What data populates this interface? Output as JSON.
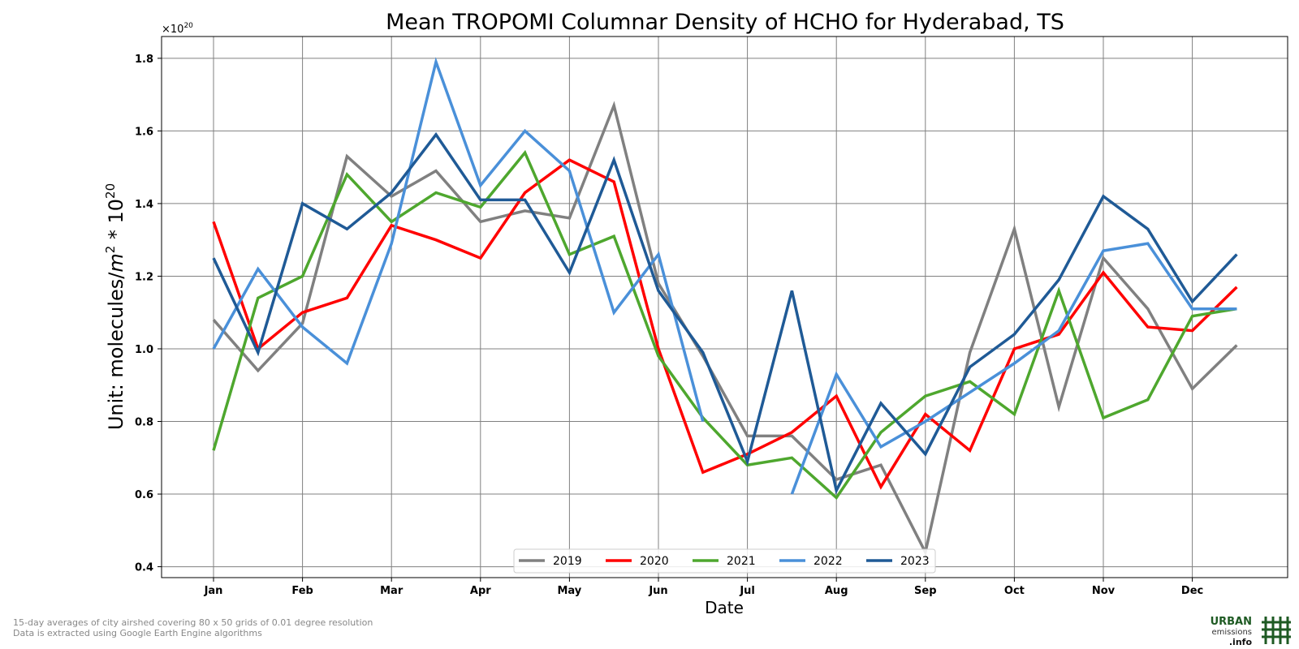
{
  "chart_data": {
    "type": "line",
    "title": "Mean TROPOMI Columnar Density of HCHO for Hyderabad, TS",
    "xlabel": "Date",
    "ylabel_text": "Unit: molecules/",
    "ylabel_unit_m": "m",
    "ylabel_unit_exp": "2",
    "ylabel_mult": " * 10",
    "ylabel_mult_exp": "20",
    "offset_base": "×10",
    "offset_exp": "20",
    "ylim": [
      0.37,
      1.86
    ],
    "yticks": [
      "0.4",
      "0.6",
      "0.8",
      "1.0",
      "1.2",
      "1.4",
      "1.6",
      "1.8"
    ],
    "xticks": [
      "Jan",
      "Feb",
      "Mar",
      "Apr",
      "May",
      "Jun",
      "Jul",
      "Aug",
      "Sep",
      "Oct",
      "Nov",
      "Dec"
    ],
    "grid": true,
    "legend_position": "bottom-center",
    "series": [
      {
        "name": "2019",
        "color": "#808080",
        "values": [
          1.08,
          0.94,
          1.07,
          1.53,
          1.42,
          1.49,
          1.35,
          1.38,
          1.36,
          1.67,
          1.18,
          0.98,
          0.76,
          0.76,
          0.64,
          0.68,
          0.44,
          0.99,
          1.33,
          0.84,
          1.25,
          1.11,
          0.89,
          1.01
        ]
      },
      {
        "name": "2020",
        "color": "#ff0000",
        "values": [
          1.35,
          1.0,
          1.1,
          1.14,
          1.34,
          1.3,
          1.25,
          1.43,
          1.52,
          1.46,
          1.0,
          0.66,
          0.71,
          0.77,
          0.87,
          0.62,
          0.82,
          0.72,
          1.0,
          1.04,
          1.21,
          1.06,
          1.05,
          1.17
        ]
      },
      {
        "name": "2021",
        "color": "#4ea72e",
        "values": [
          0.72,
          1.14,
          1.2,
          1.48,
          1.35,
          1.43,
          1.39,
          1.54,
          1.26,
          1.31,
          0.98,
          0.81,
          0.68,
          0.7,
          0.59,
          0.77,
          0.87,
          0.91,
          0.82,
          1.16,
          0.81,
          0.86,
          1.09,
          1.11
        ]
      },
      {
        "name": "2022",
        "color": "#4a90d9",
        "values": [
          1.0,
          1.22,
          1.06,
          0.96,
          1.29,
          1.79,
          1.45,
          1.6,
          1.49,
          1.1,
          1.26,
          0.8,
          null,
          0.6,
          0.93,
          0.73,
          0.8,
          0.88,
          0.96,
          1.05,
          1.27,
          1.29,
          1.11,
          1.11
        ]
      },
      {
        "name": "2023",
        "color": "#1f5a96",
        "values": [
          1.25,
          0.99,
          1.4,
          1.33,
          1.43,
          1.59,
          1.41,
          1.41,
          1.21,
          1.52,
          1.16,
          0.99,
          0.69,
          1.16,
          0.61,
          0.85,
          0.71,
          0.95,
          1.04,
          1.19,
          1.42,
          1.33,
          1.13,
          1.26
        ]
      }
    ]
  },
  "footnote": {
    "line1": "15-day averages of city airshed covering 80 x 50 grids of 0.01 degree resolution",
    "line2": "Data is extracted using Google Earth Engine algorithms"
  },
  "logo": {
    "line1": "URBAN",
    "line2": "emissions",
    "line3": ".info",
    "color": "#1e5a23"
  }
}
